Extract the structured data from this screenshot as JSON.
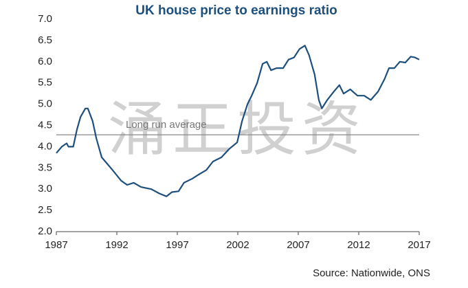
{
  "chart_data": {
    "type": "line",
    "title": "UK house price to earnings ratio",
    "source": "Source: Nationwide, ONS",
    "watermark": "涌正投资",
    "reference_line": 4.28,
    "reference_label": "Long run average",
    "xlim": [
      1987,
      2017
    ],
    "xticks": [
      1987,
      1992,
      1997,
      2002,
      2007,
      2012,
      2017
    ],
    "ylim": [
      2,
      7
    ],
    "yticks": [
      {
        "value": 2,
        "label": "2.0"
      },
      2.5,
      {
        "value": 3,
        "label": "3.0"
      },
      3.5,
      {
        "value": 4,
        "label": "4.0"
      },
      4.5,
      {
        "value": 5,
        "label": "5.0"
      },
      5.5,
      {
        "value": 6,
        "label": "6.0"
      },
      6.5,
      {
        "value": 7,
        "label": "7.0"
      }
    ],
    "color": "#1d4f7c",
    "x": [
      1987.0,
      1987.45,
      1987.85,
      1988.0,
      1988.4,
      1988.7,
      1989.0,
      1989.4,
      1989.6,
      1990.0,
      1990.3,
      1990.75,
      1991.2,
      1991.65,
      1992.35,
      1992.85,
      1993.4,
      1994.0,
      1994.85,
      1995.5,
      1996.1,
      1996.55,
      1997.1,
      1997.55,
      1998.25,
      1998.8,
      1999.4,
      1999.95,
      2000.65,
      2001.3,
      2001.95,
      2002.35,
      2002.8,
      2003.15,
      2003.6,
      2004.05,
      2004.4,
      2004.75,
      2005.2,
      2005.75,
      2006.2,
      2006.65,
      2007.1,
      2007.55,
      2007.9,
      2008.35,
      2008.7,
      2008.95,
      2009.4,
      2009.95,
      2010.4,
      2010.75,
      2011.3,
      2011.9,
      2012.45,
      2013.0,
      2013.6,
      2014.15,
      2014.5,
      2014.95,
      2015.4,
      2015.85,
      2016.3,
      2016.65,
      2017.0
    ],
    "values": [
      3.85,
      4.0,
      4.08,
      4.0,
      4.0,
      4.4,
      4.7,
      4.9,
      4.9,
      4.6,
      4.2,
      3.75,
      3.6,
      3.45,
      3.2,
      3.1,
      3.15,
      3.05,
      3.0,
      2.9,
      2.83,
      2.93,
      2.95,
      3.15,
      3.25,
      3.35,
      3.45,
      3.65,
      3.75,
      3.95,
      4.1,
      4.6,
      5.0,
      5.2,
      5.5,
      5.95,
      6.0,
      5.8,
      5.85,
      5.85,
      6.05,
      6.1,
      6.3,
      6.38,
      6.15,
      5.7,
      5.1,
      4.9,
      5.1,
      5.3,
      5.45,
      5.25,
      5.35,
      5.2,
      5.2,
      5.1,
      5.3,
      5.6,
      5.85,
      5.85,
      6.0,
      5.98,
      6.12,
      6.1,
      6.05
    ]
  }
}
